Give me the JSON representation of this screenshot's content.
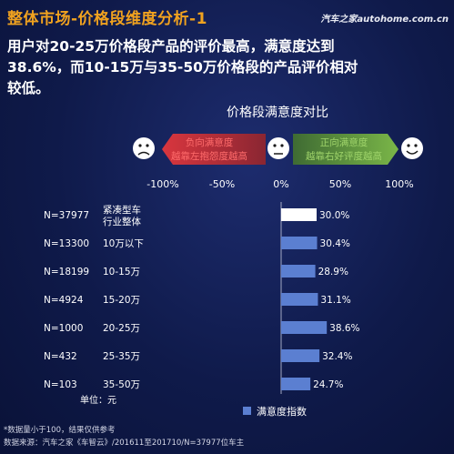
{
  "header": {
    "title": "整体市场-价格段维度分析-1",
    "watermark": "汽车之家autohome.com.cn"
  },
  "headline": {
    "line1": "用户对20-25万价格段产品的评价最高，满意度达到",
    "line2": "38.6%，而10-15万与35-50万价格段的产品评价相对",
    "line3": "较低。"
  },
  "scale": {
    "negative_label_1": "负向满意度",
    "negative_label_2": "越靠左抱怨度越高",
    "positive_label_1": "正向满意度",
    "positive_label_2": "越靠右好评度越高"
  },
  "chart_data": {
    "type": "bar",
    "orientation": "horizontal",
    "title": "价格段满意度对比",
    "x_ticks": [
      "-100%",
      "-50%",
      "0%",
      "50%",
      "100%"
    ],
    "xlim": [
      -100,
      100
    ],
    "categories": [
      {
        "n_label": "N=37977",
        "label_lines": [
          "紧凑型车",
          "行业整体"
        ],
        "highlight": true
      },
      {
        "n_label": "N=13300",
        "label_lines": [
          "10万以下"
        ],
        "highlight": false
      },
      {
        "n_label": "N=18199",
        "label_lines": [
          "10-15万"
        ],
        "highlight": false
      },
      {
        "n_label": "N=4924",
        "label_lines": [
          "15-20万"
        ],
        "highlight": false
      },
      {
        "n_label": "N=1000",
        "label_lines": [
          "20-25万"
        ],
        "highlight": false
      },
      {
        "n_label": "N=432",
        "label_lines": [
          "25-35万"
        ],
        "highlight": false
      },
      {
        "n_label": "N=103",
        "label_lines": [
          "35-50万"
        ],
        "highlight": false
      }
    ],
    "values": [
      30.0,
      30.4,
      28.9,
      31.1,
      38.6,
      32.4,
      24.7
    ],
    "value_labels": [
      "30.0%",
      "30.4%",
      "28.9%",
      "31.1%",
      "38.6%",
      "32.4%",
      "24.7%"
    ],
    "unit_label": "单位：元",
    "legend": "满意度指数",
    "colors": {
      "bar": "#5b7fd1",
      "highlight_bar": "#ffffff",
      "negative_arrow": "#d9363e",
      "positive_arrow": "#7ab648"
    }
  },
  "footer": {
    "note": "*数据量小于100，结果仅供参考",
    "source": "数据来源：汽车之家《车智云》/201611至201710/N=37977位车主"
  }
}
